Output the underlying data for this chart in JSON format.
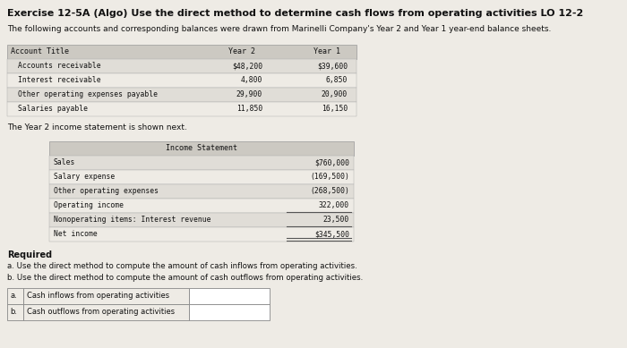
{
  "title": "Exercise 12-5A (Algo) Use the direct method to determine cash flows from operating activities LO 12-2",
  "subtitle": "The following accounts and corresponding balances were drawn from Marinelli Company's Year 2 and Year 1 year-end balance sheets.",
  "balance_sheet": {
    "headers": [
      "Account Title",
      "Year 2",
      "Year 1"
    ],
    "rows": [
      [
        "Accounts receivable",
        "$48,200",
        "$39,600"
      ],
      [
        "Interest receivable",
        "4,800",
        "6,850"
      ],
      [
        "Other operating expenses payable",
        "29,900",
        "20,900"
      ],
      [
        "Salaries payable",
        "11,850",
        "16,150"
      ]
    ]
  },
  "income_stmt_label": "The Year 2 income statement is shown next.",
  "income_statement": {
    "header": "Income Statement",
    "rows": [
      [
        "Sales",
        "$760,000"
      ],
      [
        "Salary expense",
        "(169,500)"
      ],
      [
        "Other operating expenses",
        "(268,500)"
      ],
      [
        "Operating income",
        "322,000"
      ],
      [
        "Nonoperating items: Interest revenue",
        "23,500"
      ],
      [
        "Net income",
        "$345,500"
      ]
    ],
    "underline_before": [
      3,
      4
    ],
    "double_underline": [
      5
    ]
  },
  "required_label": "Required",
  "required_items": [
    "a. Use the direct method to compute the amount of cash inflows from operating activities.",
    "b. Use the direct method to compute the amount of cash outflows from operating activities."
  ],
  "answer_rows": [
    [
      "a.",
      "Cash inflows from operating activities"
    ],
    [
      "b.",
      "Cash outflows from operating activities"
    ]
  ],
  "bg_color": "#eeebe5",
  "table_header_bg": "#ccc9c2",
  "table_row_bg": "#e0ddd7",
  "answer_box_bg": "#ffffff",
  "font_color": "#111111"
}
